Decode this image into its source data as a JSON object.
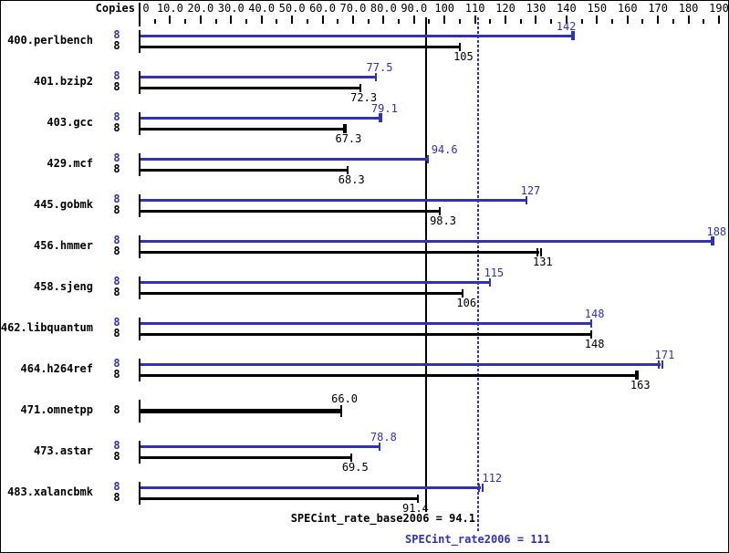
{
  "chart_data": {
    "type": "bar",
    "orientation": "horizontal",
    "copies_column_header": "Copies",
    "xlim": [
      0,
      193
    ],
    "axis_ticks": [
      {
        "v": 0,
        "label": "0"
      },
      {
        "v": 10,
        "label": "10.0"
      },
      {
        "v": 20,
        "label": "20.0"
      },
      {
        "v": 30,
        "label": "30.0"
      },
      {
        "v": 40,
        "label": "40.0"
      },
      {
        "v": 50,
        "label": "50.0"
      },
      {
        "v": 60,
        "label": "60.0"
      },
      {
        "v": 70,
        "label": "70.0"
      },
      {
        "v": 80,
        "label": "80.0"
      },
      {
        "v": 90,
        "label": "90.0"
      },
      {
        "v": 100,
        "label": "100"
      },
      {
        "v": 110,
        "label": "110"
      },
      {
        "v": 120,
        "label": "120"
      },
      {
        "v": 130,
        "label": "130"
      },
      {
        "v": 140,
        "label": "140"
      },
      {
        "v": 150,
        "label": "150"
      },
      {
        "v": 160,
        "label": "160"
      },
      {
        "v": 170,
        "label": "170"
      },
      {
        "v": 180,
        "label": "180"
      },
      {
        "v": 190,
        "label": "190"
      }
    ],
    "minor_ticks": [
      5,
      15,
      25,
      35,
      45,
      55,
      65,
      75,
      85,
      95,
      105,
      115,
      125,
      135,
      145,
      155,
      165,
      175,
      185
    ],
    "colors": {
      "peak": "#3232b4",
      "base": "#000000"
    },
    "benchmarks": [
      {
        "name": "400.perlbench",
        "copies": "8",
        "peak": {
          "value": 142,
          "label": "142",
          "cap": "thick",
          "label_dx": -11
        },
        "base": {
          "value": 105,
          "label": "105",
          "cap": "single"
        }
      },
      {
        "name": "401.bzip2",
        "copies": "8",
        "peak": {
          "value": 77.5,
          "label": "77.5",
          "cap": "single"
        },
        "base": {
          "value": 72.3,
          "label": "72.3",
          "cap": "single"
        }
      },
      {
        "name": "403.gcc",
        "copies": "8",
        "peak": {
          "value": 79.1,
          "label": "79.1",
          "cap": "thick"
        },
        "base": {
          "value": 67.3,
          "label": "67.3",
          "cap": "thick"
        }
      },
      {
        "name": "429.mcf",
        "copies": "8",
        "peak": {
          "value": 94.6,
          "label": "94.6",
          "cap": "single",
          "label_dx": 14
        },
        "base": {
          "value": 68.3,
          "label": "68.3",
          "cap": "single"
        }
      },
      {
        "name": "445.gobmk",
        "copies": "8",
        "peak": {
          "value": 127,
          "label": "127",
          "cap": "single"
        },
        "base": {
          "value": 98.3,
          "label": "98.3",
          "cap": "single"
        }
      },
      {
        "name": "456.hmmer",
        "copies": "8",
        "peak": {
          "value": 188,
          "label": "188",
          "cap": "thick"
        },
        "base": {
          "value": 131,
          "label": "131",
          "cap": "double"
        }
      },
      {
        "name": "458.sjeng",
        "copies": "8",
        "peak": {
          "value": 115,
          "label": "115",
          "cap": "single"
        },
        "base": {
          "value": 106,
          "label": "106",
          "cap": "single"
        }
      },
      {
        "name": "462.libquantum",
        "copies": "8",
        "peak": {
          "value": 148,
          "label": "148",
          "cap": "single"
        },
        "base": {
          "value": 148,
          "label": "148",
          "cap": "single"
        }
      },
      {
        "name": "464.h264ref",
        "copies": "8",
        "peak": {
          "value": 171,
          "label": "171",
          "cap": "double"
        },
        "base": {
          "value": 163,
          "label": "163",
          "cap": "thick"
        }
      },
      {
        "name": "471.omnetpp",
        "copies": "8",
        "single": true,
        "base": {
          "value": 66.0,
          "label": "66.0",
          "cap": "single"
        }
      },
      {
        "name": "473.astar",
        "copies": "8",
        "peak": {
          "value": 78.8,
          "label": "78.8",
          "cap": "single"
        },
        "base": {
          "value": 69.5,
          "label": "69.5",
          "cap": "single"
        }
      },
      {
        "name": "483.xalancbmk",
        "copies": "8",
        "peak": {
          "value": 112,
          "label": "112",
          "cap": "double",
          "label_dx": 8
        },
        "base": {
          "value": 91.4,
          "label": "91.4",
          "cap": "single",
          "label_dx": -7
        }
      }
    ],
    "reference_lines": [
      {
        "id": "base",
        "value": 94.1,
        "style": "solid",
        "color": "#000000",
        "label": "SPECint_rate_base2006 = 94.1"
      },
      {
        "id": "peak",
        "value": 111,
        "style": "dotted",
        "color": "#3232b4",
        "label": "SPECint_rate2006 = 111"
      }
    ]
  }
}
